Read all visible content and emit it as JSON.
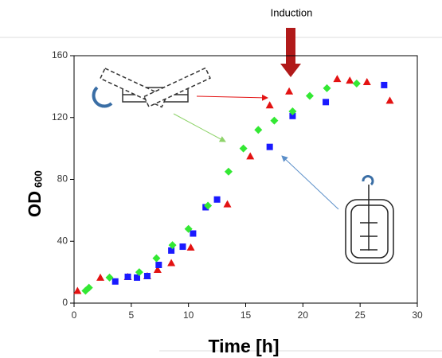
{
  "chart_data": {
    "type": "scatter",
    "annotation": "Induction",
    "y_label": "OD",
    "y_label_sub": "600",
    "x_label": "Time [h]",
    "xlim": [
      0,
      30
    ],
    "xticks": [
      0,
      5,
      10,
      15,
      20,
      25,
      30
    ],
    "ylim": [
      0,
      160
    ],
    "yticks": [
      0,
      40,
      80,
      120,
      160
    ],
    "series": [
      {
        "marker": "triangle",
        "color": "#e31212",
        "x": [
          0.3,
          2.3,
          4.7,
          6.4,
          7.3,
          8.5,
          10.2,
          13.4,
          15.4,
          17.1,
          18.8,
          23,
          24.1,
          25.6,
          27.6
        ],
        "values": [
          8,
          16.5,
          17,
          17.5,
          21.6,
          26,
          36,
          64,
          95,
          128,
          137,
          145,
          144,
          143,
          131
        ]
      },
      {
        "marker": "square",
        "color": "#1a1aff",
        "x": [
          3.6,
          4.7,
          5.5,
          6.4,
          7.4,
          8.5,
          9.5,
          10.4,
          11.5,
          12.5,
          17.1,
          19.1,
          22,
          27.1
        ],
        "values": [
          14,
          17,
          16.5,
          17.5,
          24.7,
          34,
          36.5,
          45,
          62,
          67,
          101,
          121,
          130,
          141
        ]
      },
      {
        "marker": "diamond",
        "color": "#33e833",
        "x": [
          1,
          1.3,
          3.1,
          5.7,
          7.2,
          8.6,
          10,
          11.7,
          13.5,
          14.8,
          16.1,
          17.5,
          19.1,
          20.6,
          22.1,
          24.7
        ],
        "values": [
          8,
          10,
          16.5,
          20,
          29,
          37.5,
          48,
          63,
          85,
          100,
          112,
          118,
          124,
          134,
          139,
          142
        ]
      }
    ]
  }
}
